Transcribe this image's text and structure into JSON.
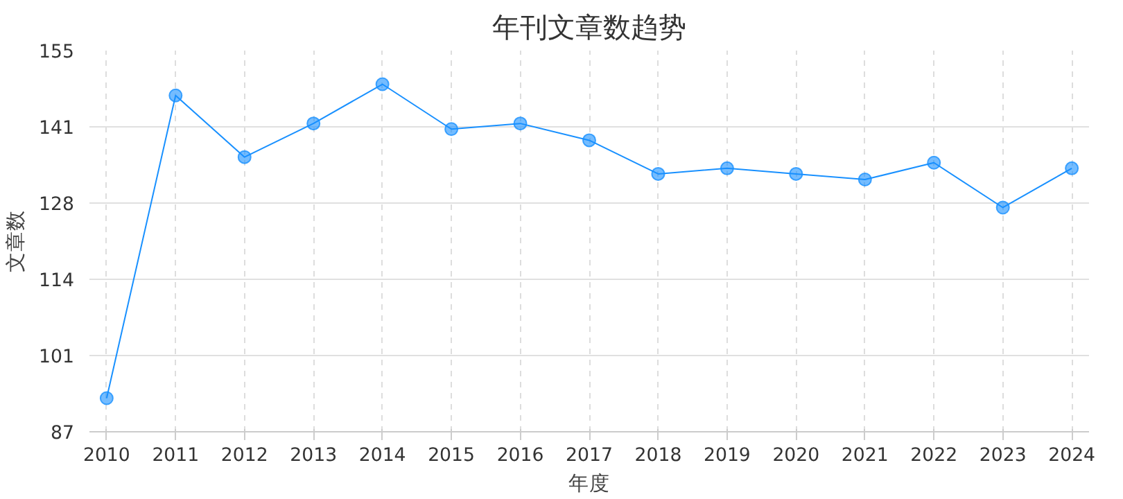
{
  "chart_data": {
    "type": "line",
    "title": "年刊文章数趋势",
    "xlabel": "年度",
    "ylabel": "文章数",
    "categories": [
      "2010",
      "2011",
      "2012",
      "2013",
      "2014",
      "2015",
      "2016",
      "2017",
      "2018",
      "2019",
      "2020",
      "2021",
      "2022",
      "2023",
      "2024"
    ],
    "series": [
      {
        "color": "#1890ff",
        "values": [
          93,
          147,
          136,
          142,
          149,
          141,
          142,
          139,
          133,
          134,
          133,
          132,
          135,
          127,
          134
        ]
      }
    ],
    "ylim": [
      87,
      155
    ],
    "yticks": [
      87,
      {
        "value": 100.6,
        "label": "101"
      },
      {
        "value": 114.2,
        "label": "114"
      },
      {
        "value": 127.8,
        "label": "128"
      },
      {
        "value": 141.4,
        "label": "141"
      },
      155
    ],
    "grid": true,
    "marker": "circle",
    "line_style": "solid"
  }
}
